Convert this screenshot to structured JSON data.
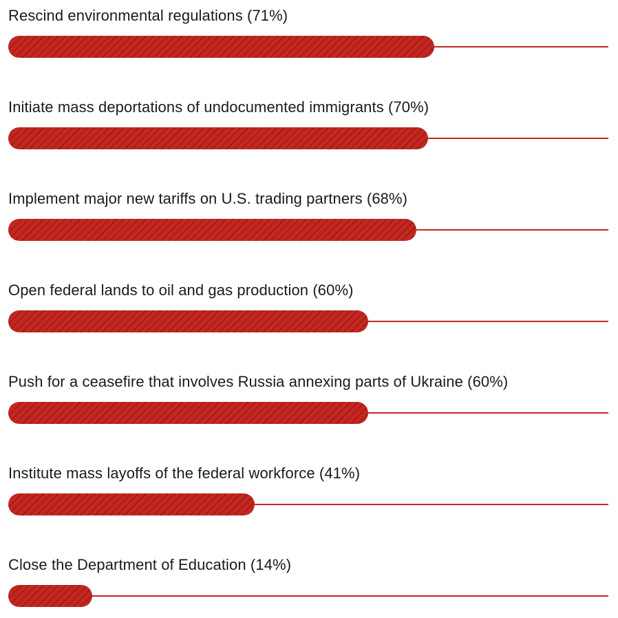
{
  "chart_data": {
    "type": "bar",
    "orientation": "horizontal",
    "bar_color": "#c42721",
    "xlim": [
      0,
      100
    ],
    "series": [
      {
        "values": [
          71,
          70,
          68,
          60,
          60,
          41,
          14
        ]
      }
    ],
    "categories": [
      "Rescind environmental regulations",
      "Initiate mass deportations of undocumented immigrants",
      "Implement major new tariffs on U.S. trading partners",
      "Open federal lands to oil and gas production",
      "Push for a ceasefire that involves Russia annexing parts of Ukraine",
      "Institute mass layoffs of the federal workforce",
      "Close the Department of Education"
    ],
    "labels": [
      "Rescind environmental regulations (71%)",
      "Initiate mass deportations of undocumented immigrants (70%)",
      "Implement major new tariffs on U.S. trading partners (68%)",
      "Open federal lands to oil and gas production (60%)",
      "Push for a ceasefire that involves Russia annexing parts of Ukraine (60%)",
      "Institute mass layoffs of the federal workforce (41%)",
      "Close the Department of Education (14%)"
    ]
  }
}
